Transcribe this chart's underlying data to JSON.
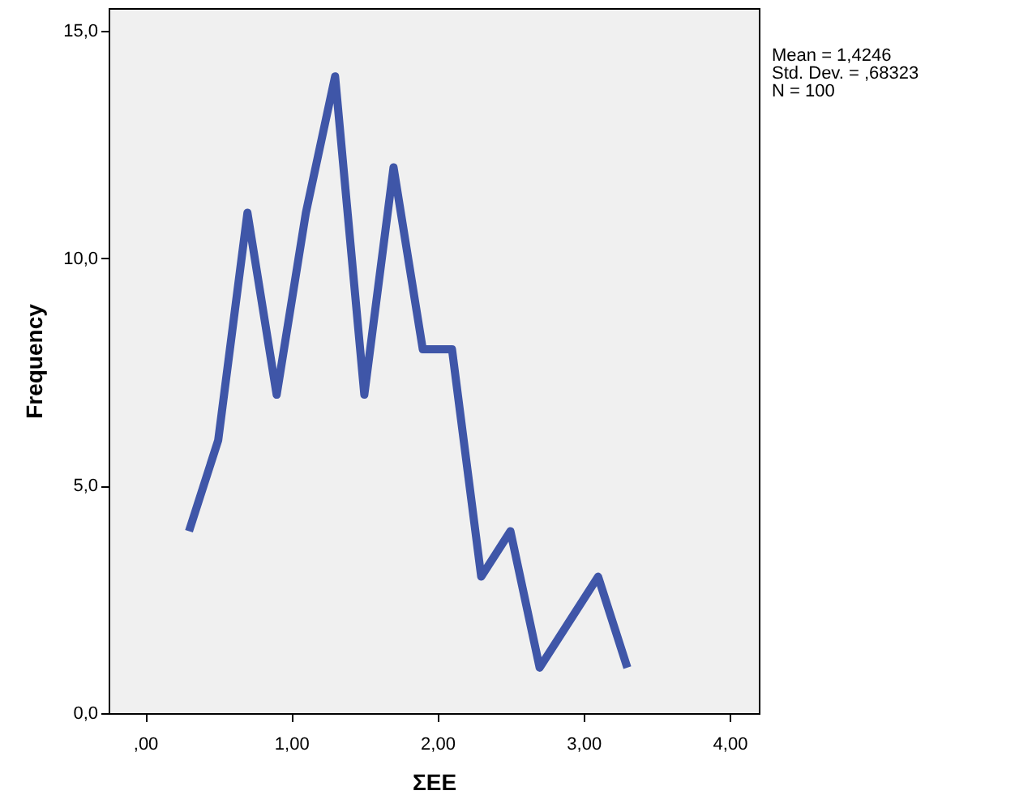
{
  "chart_data": {
    "type": "line",
    "xlabel": "ΣEE",
    "ylabel": "Frequency",
    "x": [
      0.3,
      0.5,
      0.7,
      0.9,
      1.1,
      1.3,
      1.5,
      1.7,
      1.9,
      2.1,
      2.3,
      2.5,
      2.7,
      3.1,
      3.3
    ],
    "series": [
      {
        "color": "#3f56a8",
        "values": [
          4,
          6,
          11,
          7,
          11,
          14,
          7,
          12,
          8,
          8,
          3,
          4,
          1,
          3,
          1
        ]
      }
    ],
    "xlim": [
      -0.25,
      4.2
    ],
    "ylim": [
      0,
      15.5
    ],
    "xticks": [
      {
        "value": 0,
        "label": ",00"
      },
      {
        "value": 1,
        "label": "1,00"
      },
      {
        "value": 2,
        "label": "2,00"
      },
      {
        "value": 3,
        "label": "3,00"
      },
      {
        "value": 4,
        "label": "4,00"
      }
    ],
    "yticks": [
      {
        "value": 0,
        "label": "0,0"
      },
      {
        "value": 5,
        "label": "5,0"
      },
      {
        "value": 10,
        "label": "10,0"
      },
      {
        "value": 15,
        "label": "15,0"
      }
    ],
    "annotations": [
      "Mean = 1,4246",
      "Std. Dev. = ,68323",
      "N = 100"
    ],
    "grid": false,
    "marker": "none",
    "line_style": "solid"
  }
}
